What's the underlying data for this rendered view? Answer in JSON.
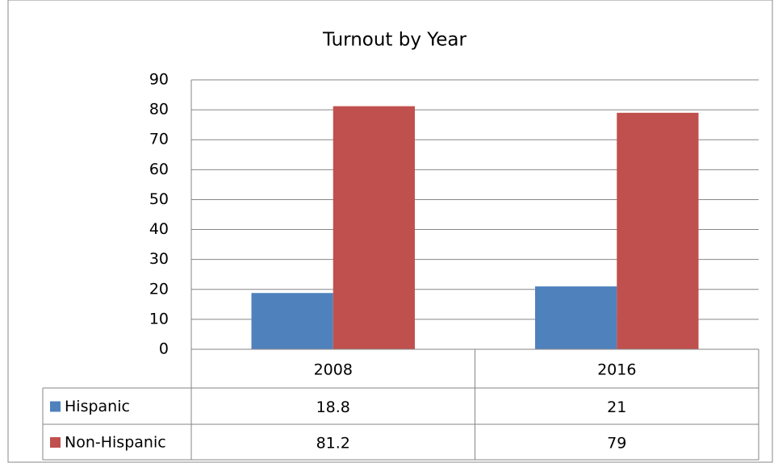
{
  "chart_data": {
    "type": "bar",
    "title": "Turnout by Year",
    "categories": [
      "2008",
      "2016"
    ],
    "series": [
      {
        "name": "Hispanic",
        "color": "#4f81bd",
        "values": [
          18.8,
          21
        ]
      },
      {
        "name": "Non-Hispanic",
        "color": "#c0504d",
        "values": [
          81.2,
          79
        ]
      }
    ],
    "ylim": [
      0,
      90
    ],
    "yticks": [
      0,
      10,
      20,
      30,
      40,
      50,
      60,
      70,
      80,
      90
    ],
    "grid": true,
    "data_table": true
  }
}
